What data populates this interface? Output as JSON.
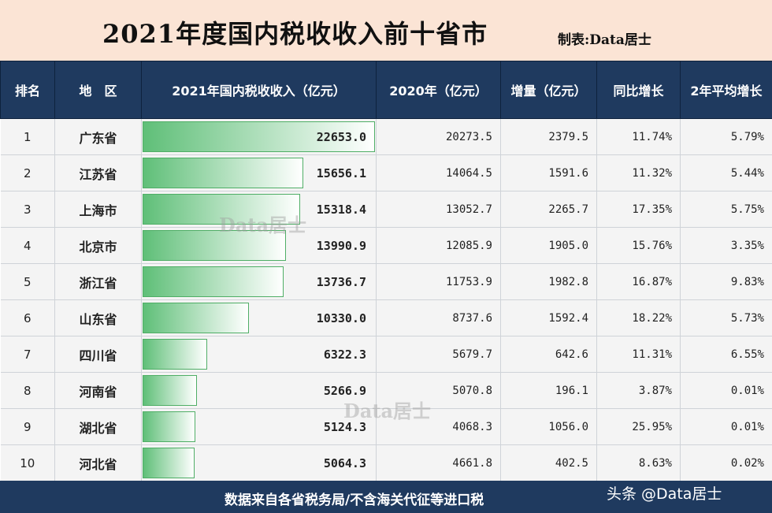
{
  "title": "2021年度国内税收收入前十省市",
  "author": "制表:Data居士",
  "headers": [
    "排名",
    "地　区",
    "2021年国内税收收入（亿元）",
    "2020年（亿元）",
    "增量（亿元）",
    "同比增长",
    "2年平均增长"
  ],
  "chart_data": {
    "type": "table",
    "title": "2021年度国内税收收入前十省市",
    "bar_max": 22653.0,
    "rows": [
      {
        "rank": "1",
        "region": "广东省",
        "tax_2021": "22653.0",
        "tax_2020": "20273.5",
        "increase": "2379.5",
        "yoy": "11.74%",
        "avg2y": "5.79%"
      },
      {
        "rank": "2",
        "region": "江苏省",
        "tax_2021": "15656.1",
        "tax_2020": "14064.5",
        "increase": "1591.6",
        "yoy": "11.32%",
        "avg2y": "5.44%"
      },
      {
        "rank": "3",
        "region": "上海市",
        "tax_2021": "15318.4",
        "tax_2020": "13052.7",
        "increase": "2265.7",
        "yoy": "17.35%",
        "avg2y": "5.75%"
      },
      {
        "rank": "4",
        "region": "北京市",
        "tax_2021": "13990.9",
        "tax_2020": "12085.9",
        "increase": "1905.0",
        "yoy": "15.76%",
        "avg2y": "3.35%"
      },
      {
        "rank": "5",
        "region": "浙江省",
        "tax_2021": "13736.7",
        "tax_2020": "11753.9",
        "increase": "1982.8",
        "yoy": "16.87%",
        "avg2y": "9.83%"
      },
      {
        "rank": "6",
        "region": "山东省",
        "tax_2021": "10330.0",
        "tax_2020": "8737.6",
        "increase": "1592.4",
        "yoy": "18.22%",
        "avg2y": "5.73%"
      },
      {
        "rank": "7",
        "region": "四川省",
        "tax_2021": "6322.3",
        "tax_2020": "5679.7",
        "increase": "642.6",
        "yoy": "11.31%",
        "avg2y": "6.55%"
      },
      {
        "rank": "8",
        "region": "河南省",
        "tax_2021": "5266.9",
        "tax_2020": "5070.8",
        "increase": "196.1",
        "yoy": "3.87%",
        "avg2y": "0.01%"
      },
      {
        "rank": "9",
        "region": "湖北省",
        "tax_2021": "5124.3",
        "tax_2020": "4068.3",
        "increase": "1056.0",
        "yoy": "25.95%",
        "avg2y": "0.01%"
      },
      {
        "rank": "10",
        "region": "河北省",
        "tax_2021": "5064.3",
        "tax_2020": "4661.8",
        "increase": "402.5",
        "yoy": "8.63%",
        "avg2y": "0.02%"
      }
    ]
  },
  "footer": "数据来自各省税务局/不含海关代征等进口税",
  "watermark": "Data居士",
  "toutiao": "头条 @Data居士",
  "colors": {
    "header_bg": "#1f3a5f",
    "title_bg": "#fbe4d5",
    "bar": "#5fbf78"
  }
}
